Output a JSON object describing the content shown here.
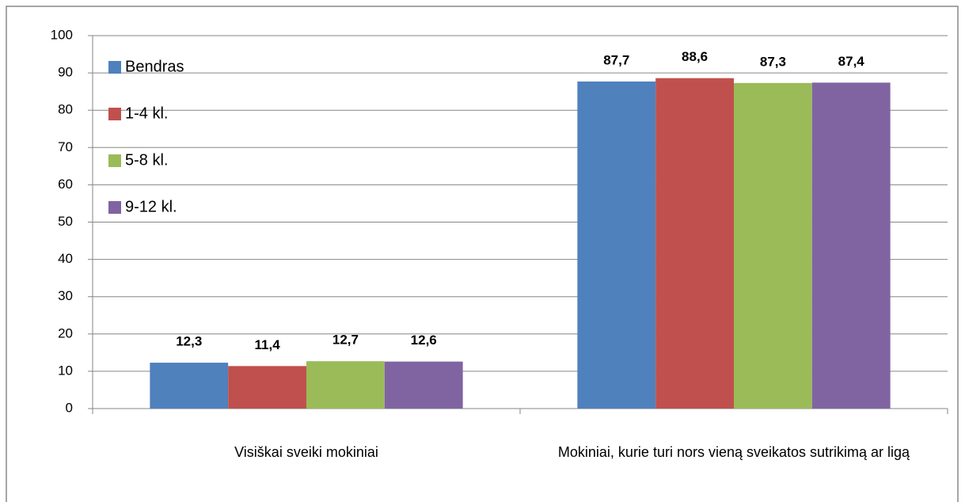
{
  "chart_data": {
    "type": "bar",
    "categories": [
      "Visiškai sveiki mokiniai",
      "Mokiniai, kurie turi nors vieną sveikatos sutrikimą ar ligą"
    ],
    "series": [
      {
        "name": "Bendras",
        "color": "#4f81bd",
        "values": [
          12.3,
          87.7
        ],
        "value_labels": [
          "12,3",
          "87,7"
        ]
      },
      {
        "name": "1-4 kl.",
        "color": "#c0504d",
        "values": [
          11.4,
          88.6
        ],
        "value_labels": [
          "11,4",
          "88,6"
        ]
      },
      {
        "name": "5-8 kl.",
        "color": "#9bbb59",
        "values": [
          12.7,
          87.3
        ],
        "value_labels": [
          "12,7",
          "87,3"
        ]
      },
      {
        "name": "9-12 kl.",
        "color": "#8064a2",
        "values": [
          12.6,
          87.4
        ],
        "value_labels": [
          "12,6",
          "87,4"
        ]
      }
    ],
    "ylim": [
      0,
      100
    ],
    "yticks": [
      0,
      10,
      20,
      30,
      40,
      50,
      60,
      70,
      80,
      90,
      100
    ],
    "grid": true,
    "legend": "top-left"
  }
}
